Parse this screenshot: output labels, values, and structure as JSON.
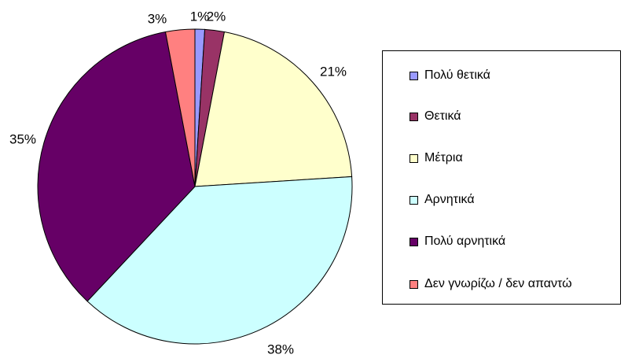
{
  "chart_data": {
    "type": "pie",
    "categories": [
      "Πολύ θετικά",
      " Θετικά",
      " Μέτρια",
      "Αρνητικά",
      "Πολύ αρνητικά",
      "Δεν γνωρίζω / δεν απαντώ"
    ],
    "values": [
      1,
      2,
      21,
      38,
      35,
      3
    ],
    "value_labels": [
      "1%",
      "2%",
      "21%",
      "38%",
      "35%",
      "3%"
    ],
    "colors": [
      "#9999ff",
      "#993366",
      "#ffffcc",
      "#ccffff",
      "#660066",
      "#ff8080"
    ],
    "legend_position": "right"
  }
}
